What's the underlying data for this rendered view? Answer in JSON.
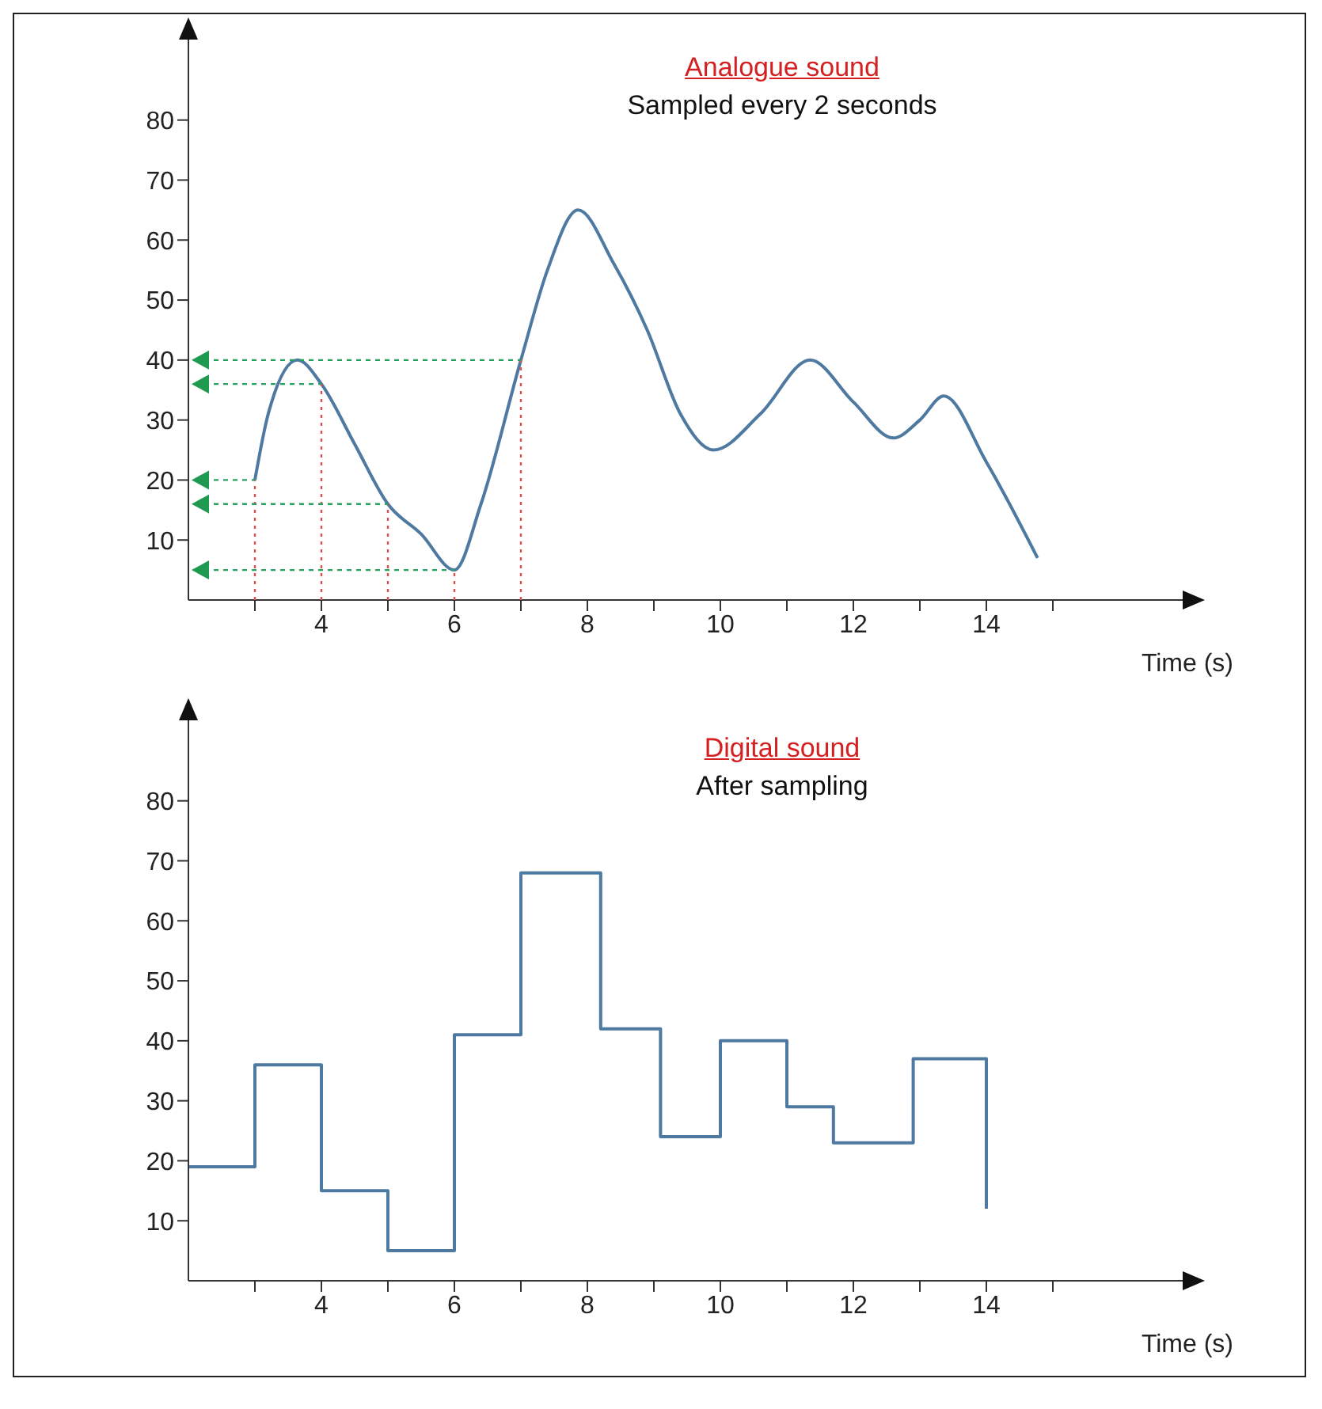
{
  "chart_data": [
    {
      "type": "line",
      "title": "Analogue sound",
      "subtitle": "Sampled every 2 seconds",
      "xlabel": "Time (s)",
      "xlim": [
        2,
        17
      ],
      "ylim": [
        0,
        95
      ],
      "xticks": [
        {
          "value": 3,
          "label": null
        },
        4,
        {
          "value": 5,
          "label": null
        },
        6,
        {
          "value": 7,
          "label": null
        },
        8,
        {
          "value": 9,
          "label": null
        },
        10,
        {
          "value": 11,
          "label": null
        },
        12,
        {
          "value": 13,
          "label": null
        },
        14,
        {
          "value": 15,
          "label": null
        }
      ],
      "yticks": [
        10,
        20,
        30,
        40,
        50,
        60,
        70,
        80
      ],
      "grid": false,
      "legend": false,
      "series": [
        {
          "color": "#4e79a0",
          "x": [
            3,
            3.2,
            3.64,
            4,
            4.5,
            5,
            5.5,
            6,
            6.4,
            7,
            7.4,
            7.86,
            8.4,
            8.9,
            9.4,
            9.9,
            10.6,
            11.35,
            12,
            12.6,
            13,
            13.36,
            14,
            14.77
          ],
          "values": [
            20,
            31,
            40,
            36,
            26,
            16,
            11,
            5,
            16,
            40,
            55,
            65,
            56,
            45,
            31,
            25,
            31,
            40,
            33,
            27,
            30,
            34,
            23,
            7
          ]
        }
      ]
    },
    {
      "type": "step",
      "title": "Digital sound",
      "subtitle": "After sampling",
      "xlabel": "Time (s)",
      "xlim": [
        2,
        17
      ],
      "ylim": [
        0,
        95
      ],
      "xticks": [
        {
          "value": 3,
          "label": null
        },
        4,
        {
          "value": 5,
          "label": null
        },
        6,
        {
          "value": 7,
          "label": null
        },
        8,
        {
          "value": 9,
          "label": null
        },
        10,
        {
          "value": 11,
          "label": null
        },
        12,
        {
          "value": 13,
          "label": null
        },
        14,
        {
          "value": 15,
          "label": null
        }
      ],
      "yticks": [
        10,
        20,
        30,
        40,
        50,
        60,
        70,
        80
      ],
      "grid": false,
      "legend": false,
      "series": [
        {
          "color": "#4e79a0",
          "x": [
            2,
            3,
            4,
            5,
            6,
            7,
            8.2,
            9.1,
            10,
            11,
            11.7,
            12.9,
            14
          ],
          "values": [
            19,
            36,
            15,
            5,
            41,
            68,
            42,
            24,
            40,
            29,
            23,
            37,
            12
          ]
        }
      ]
    }
  ]
}
